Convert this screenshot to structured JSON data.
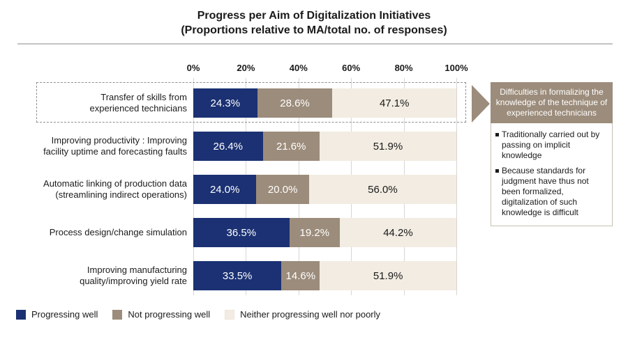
{
  "title": {
    "line1": "Progress per Aim of Digitalization Initiatives",
    "line2": "(Proportions relative to MA/total no. of responses)"
  },
  "colors": {
    "progressing_well": "#1b3173",
    "not_progressing_well": "#9c8c7b",
    "neither": "#f2ece2",
    "grid": "#d9d6d0",
    "callout_header_bg": "#9c8c7b",
    "callout_border": "#c7c0b4",
    "highlight_dash": "#8f8f8f"
  },
  "chart_data": {
    "type": "bar",
    "orientation": "horizontal",
    "stacked": true,
    "title": "Progress per Aim of Digitalization Initiatives (Proportions relative to MA/total no. of responses)",
    "x_ticks": [
      "0%",
      "20%",
      "40%",
      "60%",
      "80%",
      "100%"
    ],
    "xlim": [
      0,
      100
    ],
    "grid": true,
    "legend_position": "bottom",
    "categories": [
      "Transfer of skills from experienced technicians",
      "Improving productivity : Improving facility uptime and forecasting faults",
      "Automatic linking of production data (streamlining indirect operations)",
      "Process design/change simulation",
      "Improving manufacturing quality/improving yield rate"
    ],
    "series": [
      {
        "name": "Progressing well",
        "values": [
          24.3,
          26.4,
          24.0,
          36.5,
          33.5
        ]
      },
      {
        "name": "Not progressing well",
        "values": [
          28.6,
          21.6,
          20.0,
          19.2,
          14.6
        ]
      },
      {
        "name": "Neither progressing well nor poorly",
        "values": [
          47.1,
          51.9,
          56.0,
          44.2,
          51.9
        ]
      }
    ],
    "rows": [
      {
        "label_lines": [
          "Transfer of skills from",
          "experienced technicians"
        ],
        "values": [
          24.3,
          28.6,
          47.1
        ],
        "labels": [
          "24.3%",
          "28.6%",
          "47.1%"
        ],
        "highlighted": true
      },
      {
        "label_lines": [
          "Improving productivity : Improving",
          "facility uptime and forecasting faults"
        ],
        "values": [
          26.4,
          21.6,
          51.9
        ],
        "labels": [
          "26.4%",
          "21.6%",
          "51.9%"
        ],
        "highlighted": false
      },
      {
        "label_lines": [
          "Automatic linking of production data",
          "(streamlining indirect operations)"
        ],
        "values": [
          24.0,
          20.0,
          56.0
        ],
        "labels": [
          "24.0%",
          "20.0%",
          "56.0%"
        ],
        "highlighted": false
      },
      {
        "label_lines": [
          "Process design/change simulation"
        ],
        "values": [
          36.5,
          19.2,
          44.2
        ],
        "labels": [
          "36.5%",
          "19.2%",
          "44.2%"
        ],
        "highlighted": false
      },
      {
        "label_lines": [
          "Improving manufacturing",
          "quality/improving yield rate"
        ],
        "values": [
          33.5,
          14.6,
          51.9
        ],
        "labels": [
          "33.5%",
          "14.6%",
          "51.9%"
        ],
        "highlighted": false
      }
    ]
  },
  "legend": {
    "items": [
      {
        "label": "Progressing well"
      },
      {
        "label": "Not progressing well"
      },
      {
        "label": "Neither progressing well nor poorly"
      }
    ]
  },
  "callout": {
    "header": "Difficulties in formalizing the knowledge of the technique of experienced technicians",
    "bullets": [
      "Traditionally carried out by passing on implicit knowledge",
      "Because standards for judgment have thus not been formalized, digitalization of such knowledge is difficult"
    ]
  }
}
